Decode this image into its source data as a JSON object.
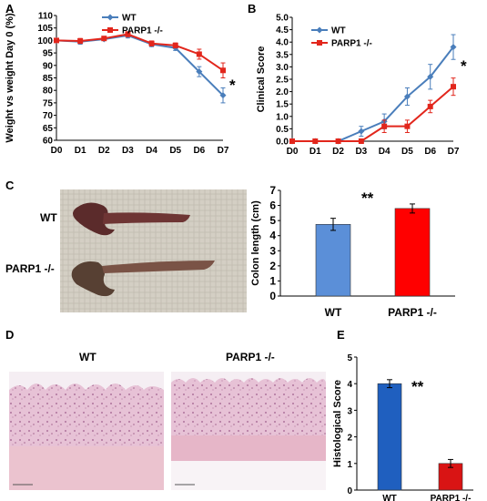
{
  "colors": {
    "wt": "#4a7ebb",
    "parp": "#e2261c",
    "wt_bar": "#5b8fd8",
    "parp_bar": "#ff0000",
    "histo_wt": "#1f5fbf",
    "histo_parp": "#d91414"
  },
  "panels": {
    "a": "A",
    "b": "B",
    "c": "C",
    "d": "D",
    "e": "E"
  },
  "photo_labels": {
    "wt": "WT",
    "parp": "PARP1 -/-"
  },
  "histology_labels": {
    "wt": "WT",
    "parp": "PARP1 -/-"
  },
  "chart_data": [
    {
      "type": "line",
      "categories": [
        "D0",
        "D1",
        "D2",
        "D3",
        "D4",
        "D5",
        "D6",
        "D7"
      ],
      "series": [
        {
          "name": "WT",
          "values": [
            100,
            99.5,
            100.5,
            102,
            98.5,
            97,
            87.5,
            78
          ],
          "errors": [
            0,
            1,
            0.5,
            1,
            1,
            1,
            2,
            3
          ]
        },
        {
          "name": "PARP1 -/-",
          "values": [
            100,
            99.8,
            100.8,
            102.5,
            98.8,
            98,
            94.5,
            88
          ],
          "errors": [
            0,
            1,
            0.5,
            1,
            1,
            1,
            2,
            3
          ]
        }
      ],
      "ylabel": "Weight vs weight Day 0 (%)",
      "ylim": [
        60,
        110
      ],
      "yticks": [
        60,
        65,
        70,
        75,
        80,
        85,
        90,
        95,
        100,
        105,
        110
      ],
      "significance": "*",
      "legend": "top-left"
    },
    {
      "type": "line",
      "categories": [
        "D0",
        "D1",
        "D2",
        "D3",
        "D4",
        "D5",
        "D6",
        "D7"
      ],
      "series": [
        {
          "name": "WT",
          "values": [
            0,
            0,
            0,
            0.4,
            0.8,
            1.8,
            2.6,
            3.8
          ],
          "errors": [
            0,
            0,
            0,
            0.2,
            0.3,
            0.35,
            0.5,
            0.5
          ]
        },
        {
          "name": "PARP1 -/-",
          "values": [
            0,
            0,
            0,
            0,
            0.6,
            0.6,
            1.4,
            2.2
          ],
          "errors": [
            0,
            0,
            0,
            0,
            0.25,
            0.25,
            0.25,
            0.35
          ]
        }
      ],
      "ylabel": "Clinical Score",
      "ylim": [
        0,
        5
      ],
      "yticks": [
        "0.0",
        "0.5",
        "1.0",
        "1.5",
        "2.0",
        "2.5",
        "3.0",
        "3.5",
        "4.0",
        "4.5",
        "5.0"
      ],
      "significance": "*",
      "legend": "top-left"
    },
    {
      "type": "bar",
      "categories": [
        "WT",
        "PARP1 -/-"
      ],
      "values": [
        4.75,
        5.8
      ],
      "errors": [
        0.4,
        0.3
      ],
      "ylabel": "Colon length (cm)",
      "ylim": [
        0,
        7
      ],
      "yticks": [
        0,
        1,
        2,
        3,
        4,
        5,
        6,
        7
      ],
      "significance": "**"
    },
    {
      "type": "bar",
      "categories": [
        "WT",
        "PARP1 -/-"
      ],
      "values": [
        4.0,
        1.0
      ],
      "errors": [
        0.15,
        0.15
      ],
      "ylabel": "Histological Score",
      "ylim": [
        0,
        5
      ],
      "yticks": [
        0,
        1,
        2,
        3,
        4,
        5
      ],
      "significance": "**"
    }
  ]
}
